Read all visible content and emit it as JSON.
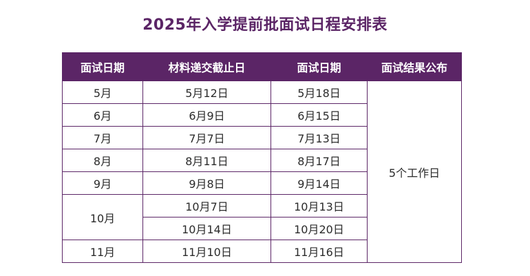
{
  "title": "2025年入学提前批面试日程安排表",
  "colors": {
    "header_bg": "#5b2566",
    "header_text": "#ffffff",
    "border": "#5b2566",
    "title": "#5b2566"
  },
  "table": {
    "headers": [
      "面试日期",
      "材料递交截止日",
      "面试日期",
      "面试结果公布"
    ],
    "rows": [
      {
        "month": "5月",
        "deadline": "5月12日",
        "interview": "5月18日"
      },
      {
        "month": "6月",
        "deadline": "6月9日",
        "interview": "6月15日"
      },
      {
        "month": "7月",
        "deadline": "7月7日",
        "interview": "7月13日"
      },
      {
        "month": "8月",
        "deadline": "8月11日",
        "interview": "8月17日"
      },
      {
        "month": "9月",
        "deadline": "9月8日",
        "interview": "9月14日"
      },
      {
        "month": "10月",
        "deadline": "10月7日",
        "interview": "10月13日"
      },
      {
        "month": "",
        "deadline": "10月14日",
        "interview": "10月20日"
      },
      {
        "month": "11月",
        "deadline": "11月10日",
        "interview": "11月16日"
      }
    ],
    "result_publish": "5个工作日"
  }
}
